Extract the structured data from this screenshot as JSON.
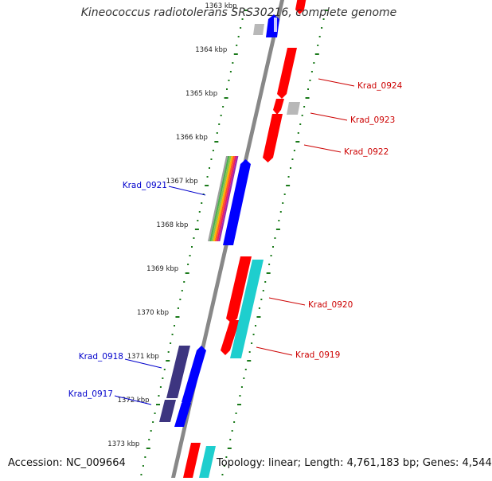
{
  "title": "Kineococcus radiotolerans SRS30216, complete genome",
  "footer": {
    "accession": "Accession: NC_009664",
    "summary": "Topology: linear; Length: 4,761,183 bp; Genes: 4,544"
  },
  "colors": {
    "forward_gene": "#ff0000",
    "reverse_gene": "#0000ff",
    "forward_label": "#cc0000",
    "reverse_label": "#0000cc",
    "dark_gene": "#3d3580",
    "cyan_gene": "#1ecece",
    "grey_gene": "#b8b8b8",
    "tick": "#1a7a1a",
    "axis": "#888888"
  },
  "scale": {
    "labels": [
      "1363 kbp",
      "1364 kbp",
      "1365 kbp",
      "1366 kbp",
      "1367 kbp",
      "1368 kbp",
      "1369 kbp",
      "1370 kbp",
      "1371 kbp",
      "1372 kbp",
      "1373 kbp"
    ]
  },
  "gene_labels": {
    "forward": [
      "Krad_0924",
      "Krad_0923",
      "Krad_0922",
      "Krad_0920",
      "Krad_0919"
    ],
    "reverse": [
      "Krad_0921",
      "Krad_0918",
      "Krad_0917"
    ]
  }
}
